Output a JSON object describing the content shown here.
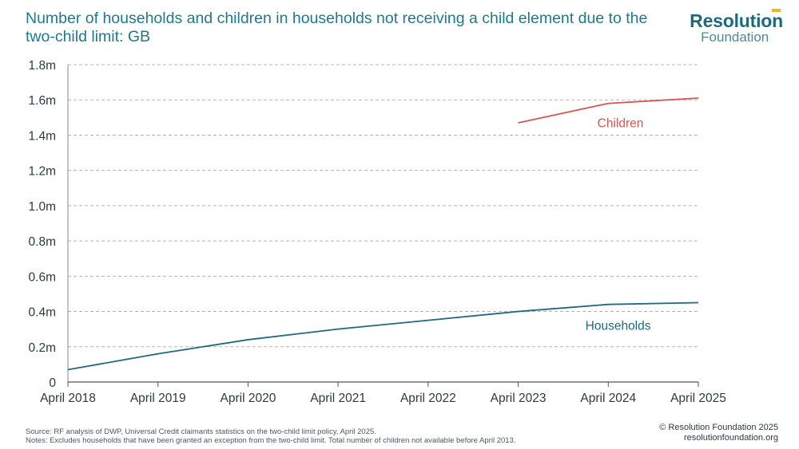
{
  "header": {
    "title": "Number of households and children in households not receiving a child element due to the two-child limit: GB",
    "logo_line1": "Resolution",
    "logo_line2": "Foundation"
  },
  "footer": {
    "source": "Source: RF analysis of DWP, Universal Credit claimants statistics on the two-child limit policy, April 2025.",
    "notes": "Notes: Excludes households that have been granted an exception from the two-child limit. Total number of children not available before April 2013.",
    "copyright": "© Resolution Foundation 2025",
    "website": "resolutionfoundation.org"
  },
  "colors": {
    "households": "#1d6a7d",
    "children": "#d9534f",
    "title": "#1d7a8c",
    "grid": "#b5b5b5",
    "logo_accent": "#f2b422"
  },
  "chart_data": {
    "type": "line",
    "x": [
      "April 2018",
      "April 2019",
      "April 2020",
      "April 2021",
      "April 2022",
      "April 2023",
      "April 2024",
      "April 2025"
    ],
    "series": [
      {
        "name": "Children",
        "values": [
          null,
          null,
          null,
          null,
          null,
          1.47,
          1.58,
          1.61
        ]
      },
      {
        "name": "Households",
        "values": [
          0.07,
          0.16,
          0.24,
          0.3,
          0.35,
          0.4,
          0.44,
          0.45
        ]
      }
    ],
    "y_ticks": [
      {
        "value": 0,
        "label": "0"
      },
      {
        "value": 0.2,
        "label": "0.2m"
      },
      {
        "value": 0.4,
        "label": "0.4m"
      },
      {
        "value": 0.6,
        "label": "0.6m"
      },
      {
        "value": 0.8,
        "label": "0.8m"
      },
      {
        "value": 1.0,
        "label": "1.0m"
      },
      {
        "value": 1.2,
        "label": "1.2m"
      },
      {
        "value": 1.4,
        "label": "1.4m"
      },
      {
        "value": 1.6,
        "label": "1.6m"
      },
      {
        "value": 1.8,
        "label": "1.8m"
      }
    ],
    "ylim": [
      0,
      1.8
    ],
    "grid": true,
    "legend": "inline labels near each line"
  }
}
